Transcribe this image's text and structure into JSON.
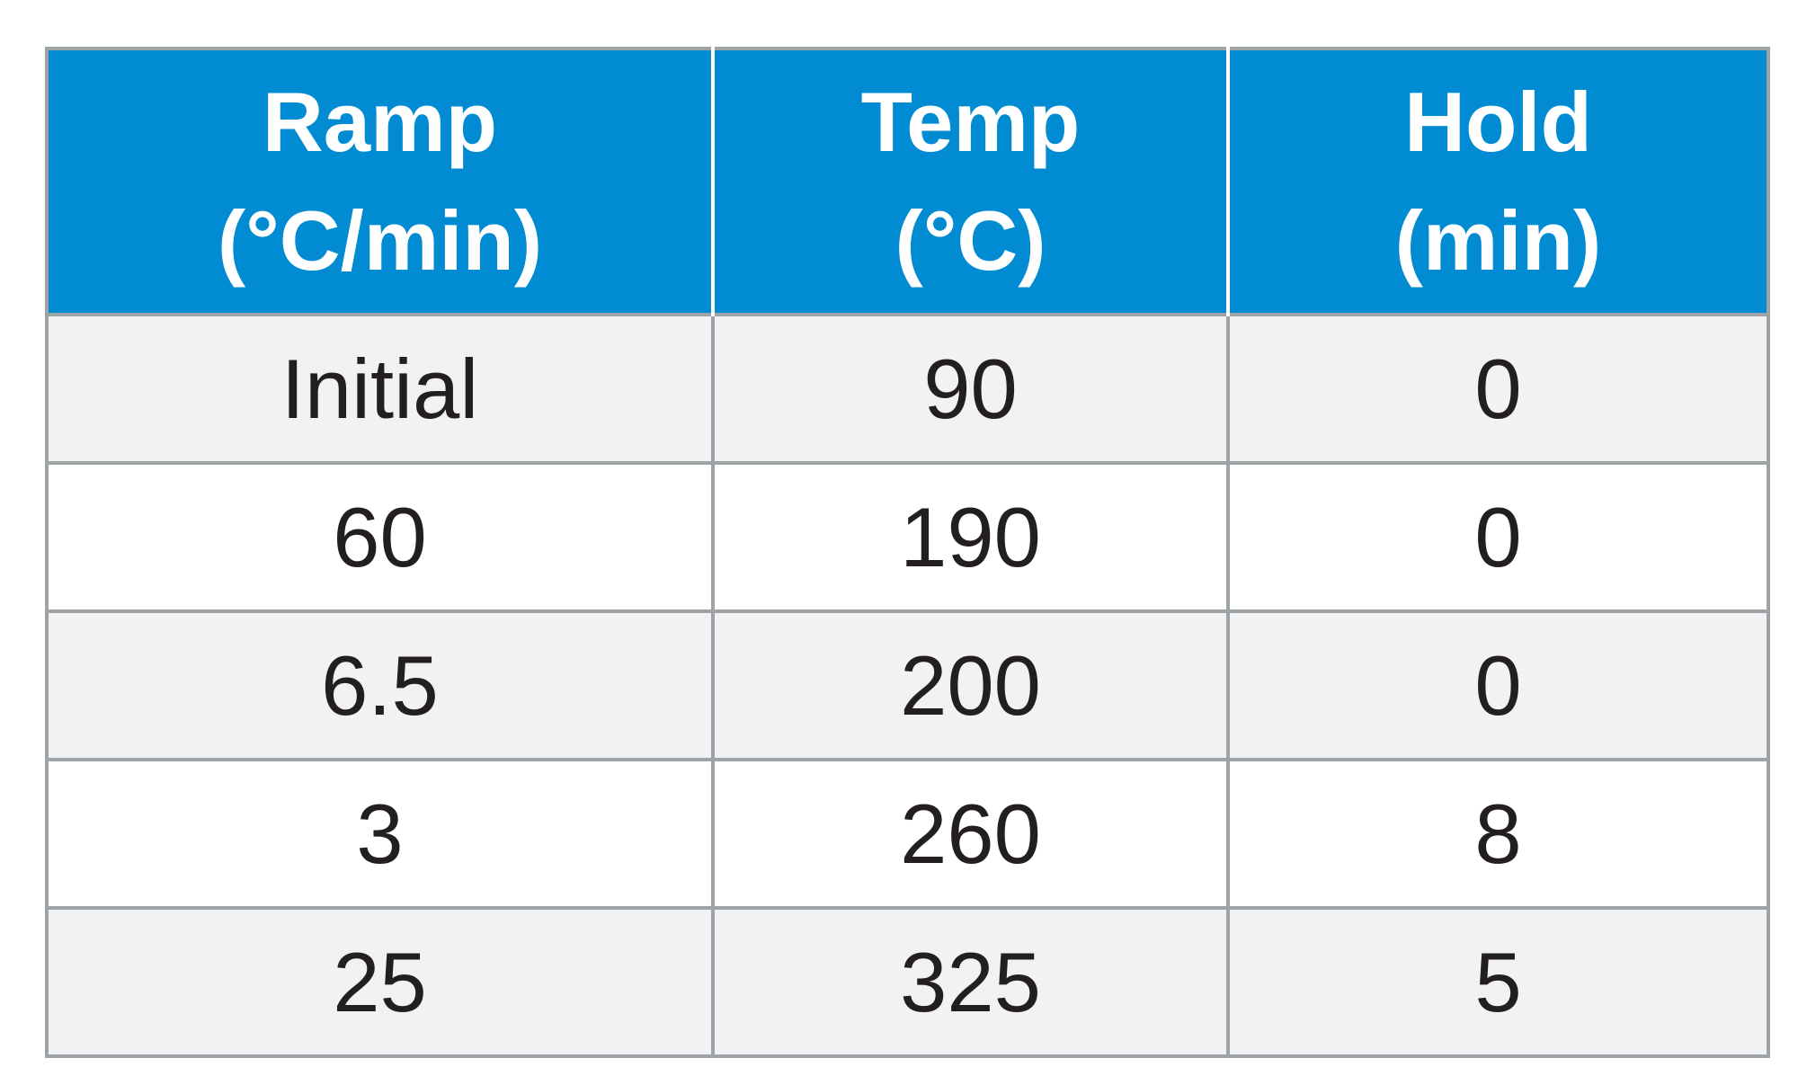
{
  "table": {
    "headers": [
      {
        "line1": "Ramp",
        "line2": "(°C/min)"
      },
      {
        "line1": "Temp",
        "line2": "(°C)"
      },
      {
        "line1": "Hold",
        "line2": "(min)"
      }
    ],
    "rows": [
      [
        "Initial",
        "90",
        "0"
      ],
      [
        "60",
        "190",
        "0"
      ],
      [
        "6.5",
        "200",
        "0"
      ],
      [
        "3",
        "260",
        "8"
      ],
      [
        "25",
        "325",
        "5"
      ]
    ],
    "colors": {
      "header_bg": "#008bd2",
      "header_text": "#ffffff",
      "row_odd_bg": "#f2f2f4",
      "row_even_bg": "#ffffff",
      "border": "#9ea3a6",
      "cell_text": "#231f20"
    }
  }
}
